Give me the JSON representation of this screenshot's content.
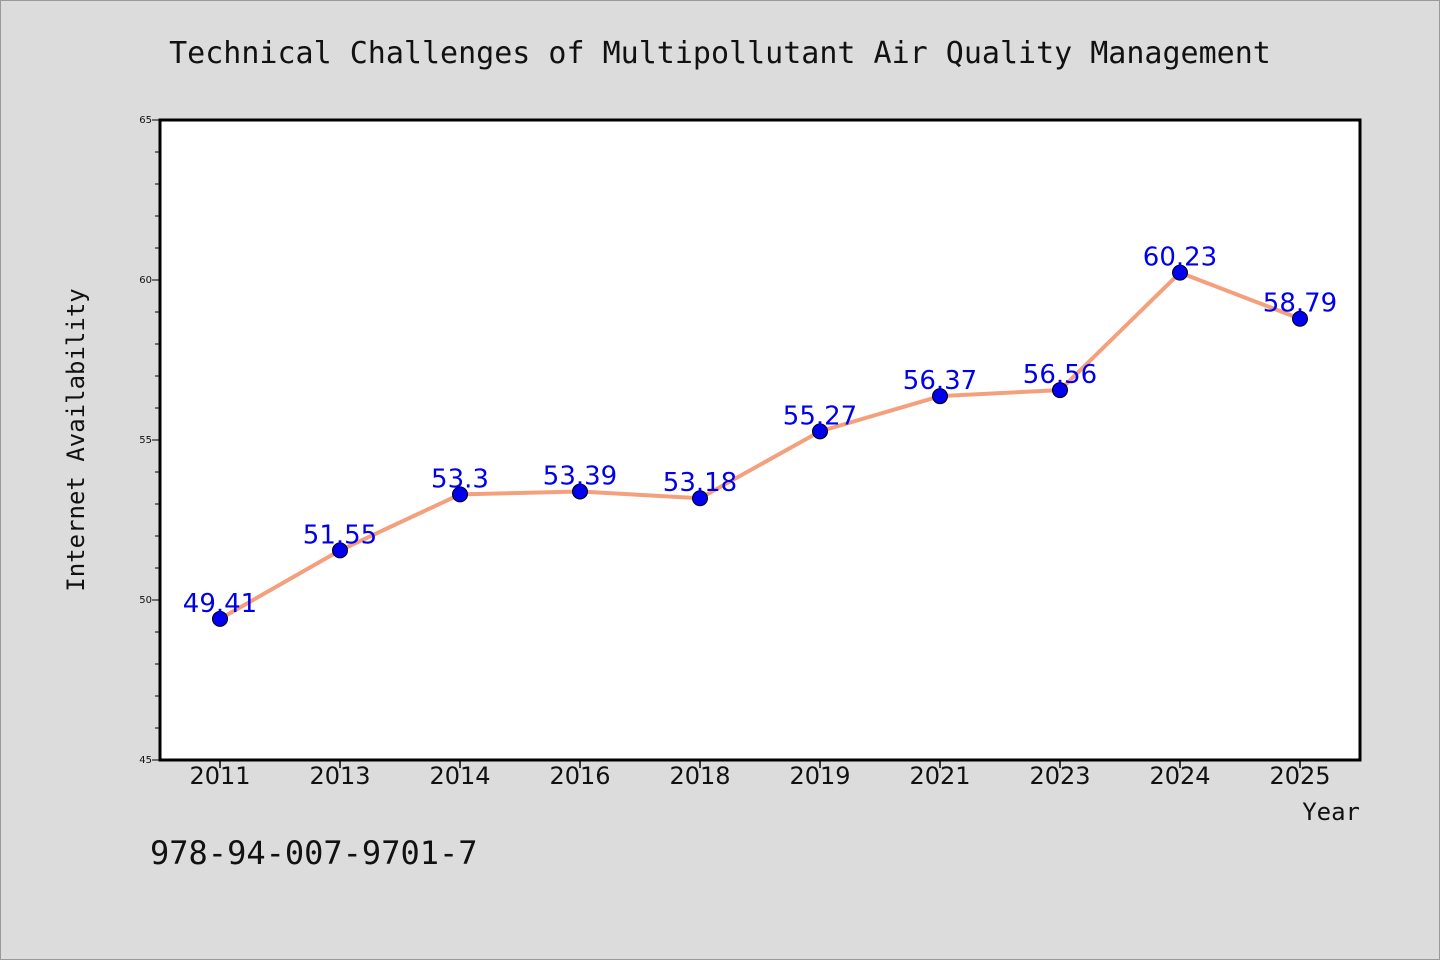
{
  "chart_data": {
    "type": "line",
    "title": "Technical Challenges of Multipollutant Air Quality Management",
    "xlabel": "Year",
    "ylabel": "Internet Availability",
    "categories": [
      "2011",
      "2013",
      "2014",
      "2016",
      "2018",
      "2019",
      "2021",
      "2023",
      "2024",
      "2025"
    ],
    "series": [
      {
        "values": [
          49.41,
          51.55,
          53.3,
          53.39,
          53.18,
          55.27,
          56.37,
          56.56,
          60.23,
          58.79
        ],
        "labels": [
          "49.41",
          "51.55",
          "53.3",
          "53.39",
          "53.18",
          "55.27",
          "56.37",
          "56.56",
          "60.23",
          "58.79"
        ]
      }
    ],
    "ylim": [
      45,
      65
    ],
    "yticks": [
      "45",
      "50",
      "55",
      "60",
      "65"
    ],
    "grid": false,
    "line_color": "#f4a07c",
    "marker_color": "#0000ee",
    "label_color": "#0000ee"
  },
  "footer": {
    "isbn": "978-94-007-9701-7"
  }
}
